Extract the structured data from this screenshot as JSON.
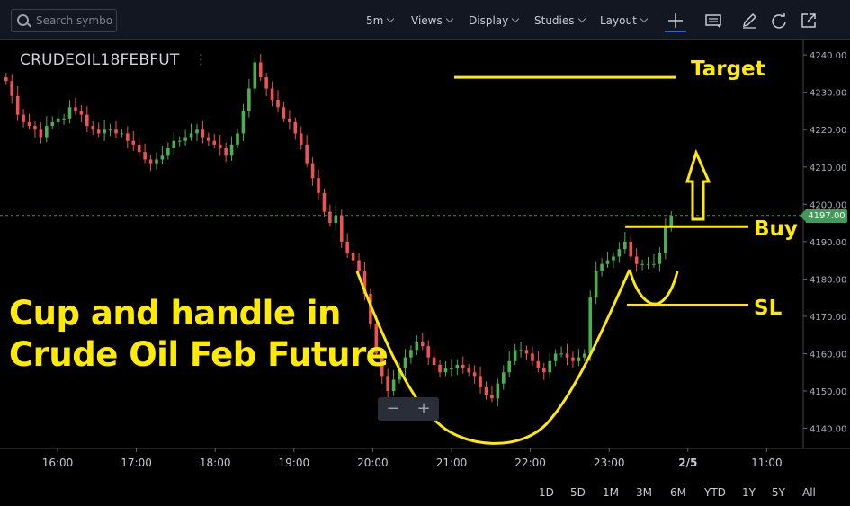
{
  "toolbar": {
    "search_placeholder": "Search symbol",
    "interval": "5m",
    "views": "Views",
    "display": "Display",
    "studies": "Studies",
    "layout": "Layout"
  },
  "symbol": "CRUDEOIL18FEBFUT",
  "annotations": {
    "headline_line1": "Cup and handle in",
    "headline_line2": "Crude Oil Feb Future",
    "target": "Target",
    "buy": "Buy",
    "sl": "SL"
  },
  "last_price_label": "4197.00",
  "ranges": [
    "1D",
    "5D",
    "1M",
    "3M",
    "6M",
    "YTD",
    "1Y",
    "5Y",
    "All"
  ],
  "colors": {
    "up": "#4caf50",
    "down": "#ef5350",
    "annotation": "#ffeb00",
    "background": "#000000"
  },
  "chart_data": {
    "type": "candlestick",
    "title": "",
    "x_ticks": [
      "16:00",
      "17:00",
      "18:00",
      "19:00",
      "20:00",
      "21:00",
      "22:00",
      "23:00",
      "2/5",
      "11:00"
    ],
    "y_ticks": [
      "4240.00",
      "4230.00",
      "4220.00",
      "4210.00",
      "4200.00",
      "4190.00",
      "4180.00",
      "4170.00",
      "4160.00",
      "4150.00",
      "4140.00"
    ],
    "ylim": [
      4137,
      4241
    ],
    "last_price": 4197,
    "target_level": 4234,
    "buy_level": 4194,
    "sl_level": 4173,
    "grid": false,
    "close": [
      4233,
      4229,
      4224,
      4222,
      4221,
      4220,
      4218,
      4221,
      4222,
      4223,
      4223,
      4226,
      4225,
      4224,
      4221,
      4220,
      4219,
      4220,
      4220,
      4219,
      4219,
      4217,
      4216,
      4214,
      4212,
      4211,
      4212,
      4213,
      4215,
      4217,
      4217,
      4218,
      4219,
      4220,
      4218,
      4217,
      4216,
      4215,
      4213,
      4216,
      4219,
      4225,
      4231,
      4238,
      4234,
      4231,
      4228,
      4226,
      4223,
      4222,
      4219,
      4216,
      4211,
      4207,
      4203,
      4198,
      4195,
      4197,
      4190,
      4187,
      4185,
      4182,
      4176,
      4168,
      4160,
      4154,
      4150,
      4153,
      4156,
      4159,
      4161,
      4163,
      4162,
      4159,
      4157,
      4155,
      4156,
      4156,
      4157,
      4156,
      4155,
      4154,
      4151,
      4149,
      4148,
      4152,
      4155,
      4158,
      4161,
      4161,
      4160,
      4158,
      4156,
      4155,
      4158,
      4160,
      4160,
      4159,
      4158,
      4159,
      4160,
      4175,
      4182,
      4184,
      4185,
      4186,
      4188,
      4190,
      4186,
      4184,
      4184,
      4184,
      4184,
      4187,
      4194,
      4197
    ]
  }
}
